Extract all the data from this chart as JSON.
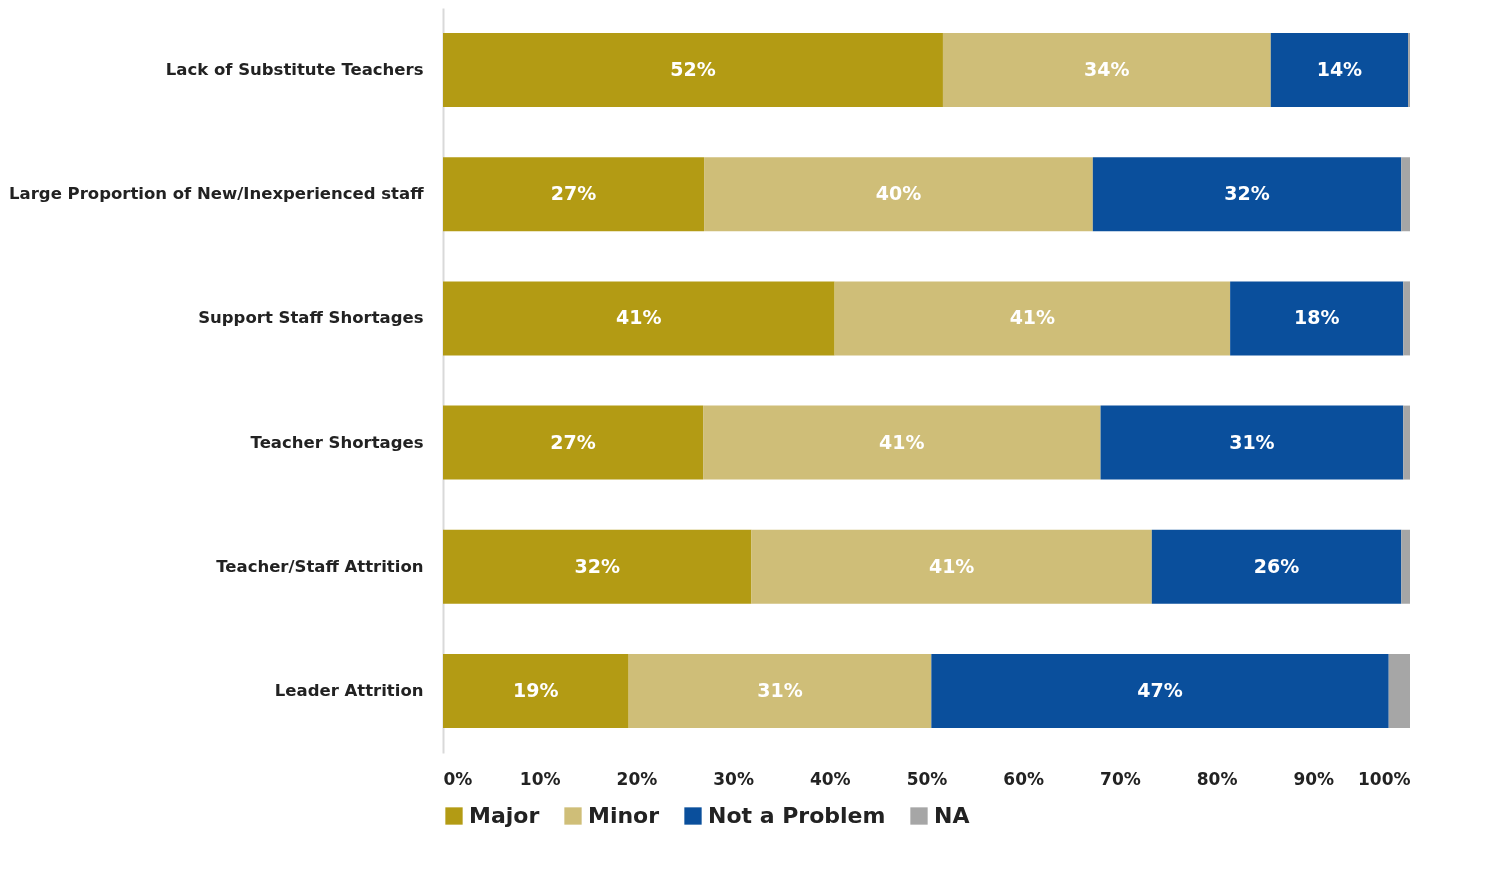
{
  "chart_data": {
    "type": "bar",
    "orientation": "horizontal",
    "stacked": true,
    "categories": [
      "Lack of Substitute Teachers",
      "Large Proportion of New/Inexperienced staff",
      "Support Staff Shortages",
      "Teacher Shortages",
      "Teacher/Staff Attrition",
      "Leader Attrition"
    ],
    "series": [
      {
        "name": "Major",
        "color": "#b39b14",
        "values": [
          51.7,
          27.0,
          40.5,
          26.9,
          31.9,
          19.2
        ],
        "value_labels": [
          "52%",
          "27%",
          "41%",
          "27%",
          "32%",
          "19%"
        ]
      },
      {
        "name": "Minor",
        "color": "#cfbe78",
        "values": [
          33.9,
          40.2,
          40.9,
          41.1,
          41.4,
          31.3
        ],
        "value_labels": [
          "34%",
          "40%",
          "41%",
          "41%",
          "41%",
          "31%"
        ]
      },
      {
        "name": "Not a Problem",
        "color": "#0a4f9c",
        "values": [
          14.2,
          31.9,
          17.9,
          31.3,
          25.8,
          47.3
        ],
        "value_labels": [
          "14%",
          "32%",
          "18%",
          "31%",
          "26%",
          "47%"
        ]
      },
      {
        "name": "NA",
        "color": "#a6a6a6",
        "values": [
          0.2,
          0.9,
          0.7,
          0.7,
          0.9,
          2.2
        ],
        "value_labels": [
          null,
          null,
          null,
          null,
          null,
          null
        ]
      }
    ],
    "xlim": [
      0,
      100
    ],
    "xticks": [
      {
        "value": 0,
        "label": "0%"
      },
      {
        "value": 10,
        "label": "10%"
      },
      {
        "value": 20,
        "label": "20%"
      },
      {
        "value": 30,
        "label": "30%"
      },
      {
        "value": 40,
        "label": "40%"
      },
      {
        "value": 50,
        "label": "50%"
      },
      {
        "value": 60,
        "label": "60%"
      },
      {
        "value": 70,
        "label": "70%"
      },
      {
        "value": 80,
        "label": "80%"
      },
      {
        "value": 90,
        "label": "90%"
      },
      {
        "value": 100,
        "label": "100%"
      }
    ],
    "grid": false,
    "legend": "bottom"
  }
}
